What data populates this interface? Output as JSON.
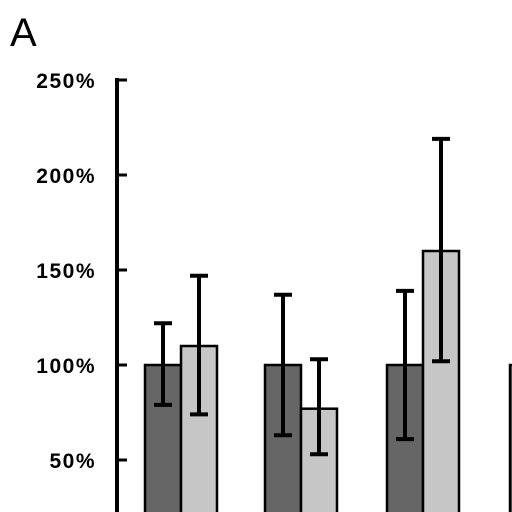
{
  "panel_label": "A",
  "colors": {
    "series_dark": "#666666",
    "series_light": "#c6c6c6",
    "axis": "#000000",
    "bar_outline": "#000000",
    "error_bar": "#000000",
    "background": "#ffffff"
  },
  "chart_data": {
    "type": "bar",
    "categories": [
      "",
      "",
      "",
      ""
    ],
    "series": [
      {
        "values": [
          100,
          100,
          100,
          100
        ],
        "err_low": [
          79,
          63,
          61,
          null
        ],
        "err_high": [
          122,
          137,
          139,
          null
        ],
        "color": "#666666"
      },
      {
        "values": [
          110,
          77,
          160,
          null
        ],
        "err_low": [
          74,
          53,
          102,
          null
        ],
        "err_high": [
          147,
          103,
          219,
          null
        ],
        "color": "#c6c6c6"
      }
    ],
    "ylim": [
      0,
      250
    ],
    "yticks": [
      50,
      100,
      150,
      200,
      250
    ],
    "ytick_labels": [
      "50%",
      "100%",
      "150%",
      "200%",
      "250%"
    ],
    "title": "",
    "xlabel": "",
    "ylabel": "",
    "grid": false,
    "legend": "none"
  }
}
